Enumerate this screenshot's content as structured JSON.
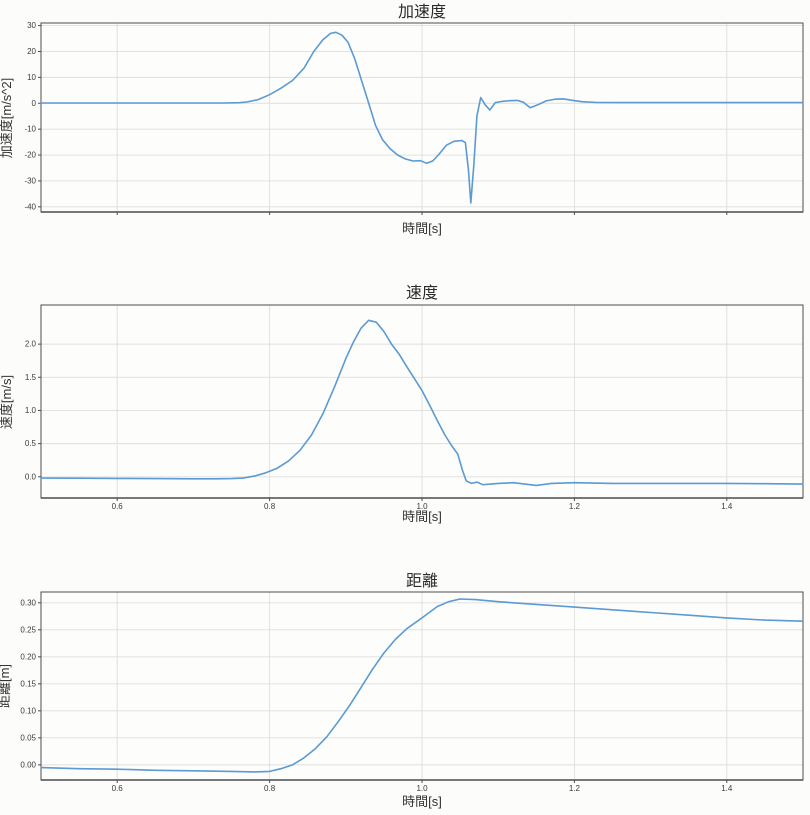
{
  "colors": {
    "background": "#fcfcfb",
    "grid": "#dedede",
    "spine": "#4d4d4d",
    "text": "#3a3a3a",
    "line": "#5b9ad2"
  },
  "chart_data": [
    {
      "type": "line",
      "title": "加速度",
      "xlabel": "時間[s]",
      "ylabel": "加速度[m/s^2]",
      "xlim": [
        0.5,
        1.5
      ],
      "ylim": [
        -42,
        31
      ],
      "grid": true,
      "legend": "none",
      "xticks": [
        0.6,
        0.8,
        1.0,
        1.2,
        1.4
      ],
      "xtick_labels": [],
      "yticks": [
        30,
        20,
        10,
        0,
        -10,
        -20,
        -30,
        -40
      ],
      "ytick_labels": [
        "30",
        "20",
        "10",
        "0",
        "-10",
        "-20",
        "-30",
        "-40"
      ],
      "line_color": "#5b9ad2",
      "series": [
        {
          "name": "acceleration",
          "x": [
            0.5,
            0.55,
            0.6,
            0.65,
            0.7,
            0.74,
            0.76,
            0.77,
            0.785,
            0.8,
            0.815,
            0.83,
            0.845,
            0.858,
            0.87,
            0.88,
            0.887,
            0.895,
            0.903,
            0.912,
            0.921,
            0.93,
            0.939,
            0.948,
            0.958,
            0.968,
            0.978,
            0.988,
            0.998,
            1.006,
            1.014,
            1.022,
            1.032,
            1.042,
            1.052,
            1.057,
            1.061,
            1.064,
            1.068,
            1.072,
            1.077,
            1.083,
            1.089,
            1.096,
            1.105,
            1.115,
            1.125,
            1.133,
            1.142,
            1.152,
            1.163,
            1.175,
            1.186,
            1.198,
            1.21,
            1.23,
            1.26,
            1.3,
            1.35,
            1.4,
            1.45,
            1.5
          ],
          "y": [
            0.1,
            0.1,
            0.1,
            0.1,
            0.1,
            0.1,
            0.2,
            0.5,
            1.4,
            3.3,
            5.8,
            8.8,
            13.5,
            20.0,
            24.5,
            27.0,
            27.4,
            26.3,
            23.5,
            17.0,
            8.5,
            0.0,
            -8.5,
            -14.0,
            -17.5,
            -20.0,
            -21.5,
            -22.3,
            -22.2,
            -23.2,
            -22.3,
            -19.8,
            -16.2,
            -14.7,
            -14.4,
            -15.2,
            -26.0,
            -38.5,
            -24.0,
            -5.0,
            2.2,
            -0.6,
            -2.6,
            0.2,
            0.7,
            1.0,
            1.1,
            0.4,
            -1.7,
            -0.6,
            0.9,
            1.6,
            1.7,
            1.1,
            0.6,
            0.3,
            0.25,
            0.25,
            0.25,
            0.25,
            0.25,
            0.25
          ]
        }
      ]
    },
    {
      "type": "line",
      "title": "速度",
      "xlabel": "時間[s]",
      "ylabel": "速度[m/s]",
      "xlim": [
        0.5,
        1.5
      ],
      "ylim": [
        -0.32,
        2.59
      ],
      "grid": true,
      "legend": "none",
      "xticks": [
        0.6,
        0.8,
        1.0,
        1.2,
        1.4
      ],
      "xtick_labels": [
        "0.6",
        "0.8",
        "1.0",
        "1.2",
        "1.4"
      ],
      "yticks": [
        2.0,
        1.5,
        1.0,
        0.5,
        0.0
      ],
      "ytick_labels": [
        "2.0",
        "1.5",
        "1.0",
        "0.5",
        "0.0"
      ],
      "line_color": "#5b9ad2",
      "series": [
        {
          "name": "velocity",
          "x": [
            0.5,
            0.55,
            0.6,
            0.65,
            0.7,
            0.73,
            0.75,
            0.765,
            0.78,
            0.795,
            0.81,
            0.825,
            0.84,
            0.855,
            0.87,
            0.885,
            0.9,
            0.91,
            0.92,
            0.93,
            0.94,
            0.95,
            0.96,
            0.97,
            0.98,
            0.99,
            1.0,
            1.01,
            1.02,
            1.03,
            1.04,
            1.047,
            1.053,
            1.058,
            1.065,
            1.072,
            1.08,
            1.09,
            1.1,
            1.12,
            1.135,
            1.15,
            1.17,
            1.2,
            1.25,
            1.3,
            1.35,
            1.4,
            1.45,
            1.5
          ],
          "y": [
            -0.02,
            -0.022,
            -0.025,
            -0.028,
            -0.03,
            -0.03,
            -0.028,
            -0.02,
            0.01,
            0.06,
            0.13,
            0.24,
            0.4,
            0.63,
            0.95,
            1.35,
            1.78,
            2.03,
            2.24,
            2.36,
            2.33,
            2.19,
            2.0,
            1.85,
            1.66,
            1.48,
            1.3,
            1.08,
            0.85,
            0.63,
            0.45,
            0.34,
            0.1,
            -0.06,
            -0.1,
            -0.08,
            -0.12,
            -0.11,
            -0.1,
            -0.09,
            -0.11,
            -0.13,
            -0.1,
            -0.09,
            -0.1,
            -0.1,
            -0.1,
            -0.1,
            -0.105,
            -0.11
          ]
        }
      ]
    },
    {
      "type": "line",
      "title": "距離",
      "xlabel": "時間[s]",
      "ylabel": "距離[m]",
      "xlim": [
        0.5,
        1.5
      ],
      "ylim": [
        -0.028,
        0.32
      ],
      "grid": true,
      "legend": "none",
      "xticks": [
        0.6,
        0.8,
        1.0,
        1.2,
        1.4
      ],
      "xtick_labels": [
        "0.6",
        "0.8",
        "1.0",
        "1.2",
        "1.4"
      ],
      "yticks": [
        0.3,
        0.25,
        0.2,
        0.15,
        0.1,
        0.05,
        0.0
      ],
      "ytick_labels": [
        "0.30",
        "0.25",
        "0.20",
        "0.15",
        "0.10",
        "0.05",
        "0.00"
      ],
      "line_color": "#5b9ad2",
      "series": [
        {
          "name": "distance",
          "x": [
            0.5,
            0.55,
            0.6,
            0.65,
            0.7,
            0.75,
            0.78,
            0.8,
            0.815,
            0.83,
            0.845,
            0.86,
            0.875,
            0.89,
            0.905,
            0.92,
            0.935,
            0.95,
            0.965,
            0.98,
            1.0,
            1.02,
            1.035,
            1.05,
            1.07,
            1.1,
            1.15,
            1.2,
            1.25,
            1.3,
            1.35,
            1.4,
            1.45,
            1.5
          ],
          "y": [
            -0.005,
            -0.007,
            -0.008,
            -0.01,
            -0.011,
            -0.012,
            -0.013,
            -0.012,
            -0.007,
            0.0,
            0.013,
            0.03,
            0.052,
            0.08,
            0.11,
            0.143,
            0.177,
            0.207,
            0.232,
            0.252,
            0.272,
            0.293,
            0.302,
            0.307,
            0.306,
            0.302,
            0.297,
            0.292,
            0.287,
            0.282,
            0.277,
            0.272,
            0.268,
            0.266
          ]
        }
      ]
    }
  ]
}
